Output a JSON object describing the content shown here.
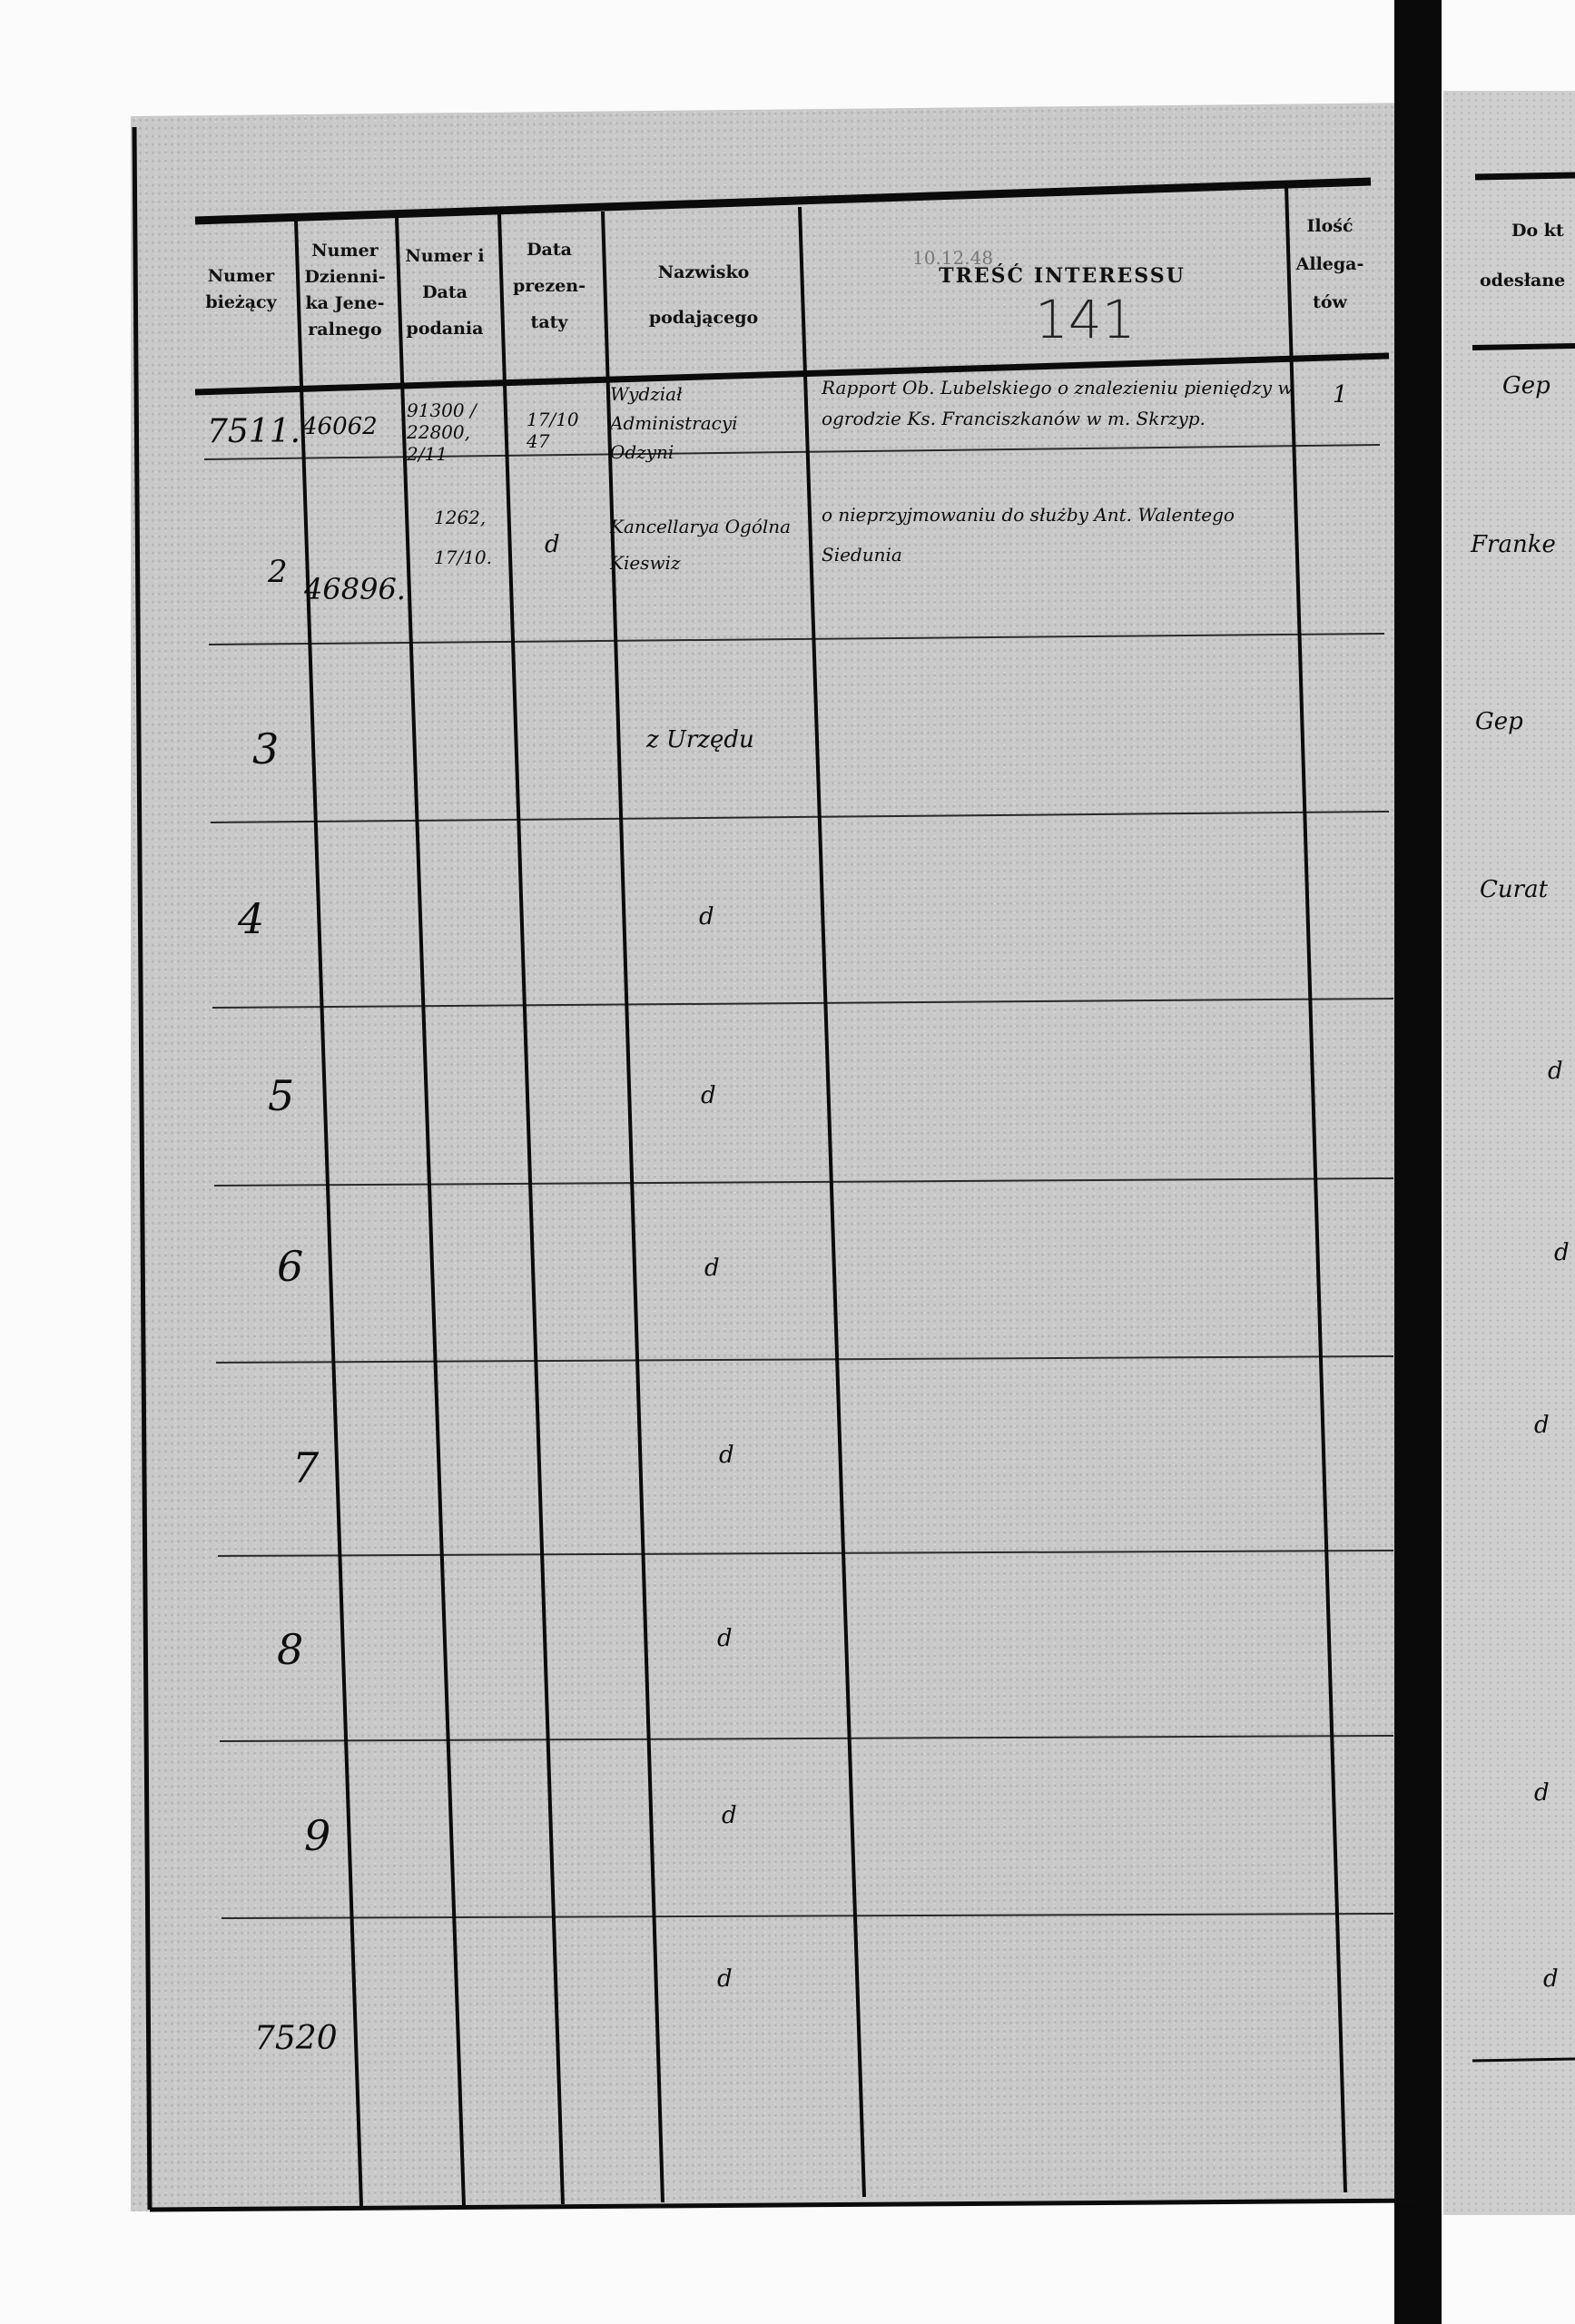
{
  "header": {
    "col_numer_biezacy": "Numer bieżący",
    "col_numer_dziennika": "Numer Dzienni-ka Jene-ralnego",
    "col_numer_data_podania": "Numer i Data podania",
    "col_data_prezentaty": "Data prezen-taty",
    "col_nazwisko": "Nazwisko podającego",
    "col_tresc": "TREŚĆ INTERESSU",
    "col_ilosc": "Ilość Allega-tów",
    "page_number": "141",
    "faint_stamp": "10.12.48"
  },
  "rows": [
    {
      "numer": "7511.",
      "dziennik": "46062",
      "podanie": "91300 / 22800, 2/11",
      "prezentata": "17/10 47",
      "nazwisko": "Wydział Administracyi Odzyni",
      "tresc": "Rapport Ob. Lubelskiego o znalezieniu pieniędzy w ogrodzie Ks. Franciszkanów w m. Skrzyp.",
      "allegaty": "1"
    },
    {
      "numer": "2",
      "dziennik": "46896.",
      "podanie": "1262, 17/10.",
      "prezentata": "d",
      "nazwisko": "Kancellarya Ogólna Kieswiz",
      "tresc": "o nieprzyjmowaniu do służby Ant. Walentego Siedunia",
      "allegaty": ""
    },
    {
      "numer": "3",
      "nazwisko": "z Urzędu"
    },
    {
      "numer": "4",
      "nazwisko": "d"
    },
    {
      "numer": "5",
      "nazwisko": "d"
    },
    {
      "numer": "6",
      "nazwisko": "d"
    },
    {
      "numer": "7",
      "nazwisko": "d"
    },
    {
      "numer": "8",
      "nazwisko": "d"
    },
    {
      "numer": "9",
      "nazwisko": "d"
    },
    {
      "numer": "7520",
      "nazwisko": "d"
    }
  ],
  "right_page": {
    "header_line1": "Do kt",
    "header_line2": "odesłane",
    "entries": [
      "Gep",
      "Franke",
      "Gep",
      "Curat",
      "d",
      "d",
      "d",
      "d",
      "d"
    ]
  }
}
